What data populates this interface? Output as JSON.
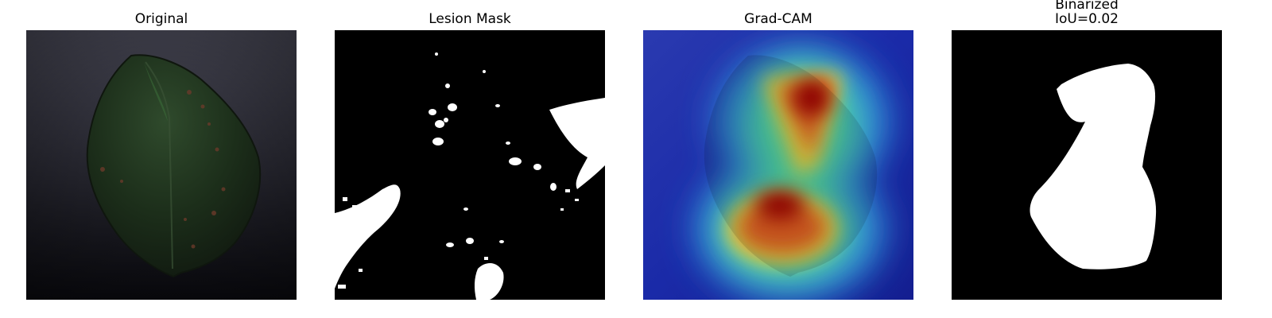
{
  "panels": [
    {
      "id": "original",
      "title": "Original"
    },
    {
      "id": "lesion-mask",
      "title": "Lesion Mask"
    },
    {
      "id": "grad-cam",
      "title": "Grad-CAM"
    },
    {
      "id": "binarized",
      "title": "Binarized",
      "subtitle": "IoU=0.02"
    }
  ],
  "colors": {
    "background": "#ffffff",
    "mask_background": "#000000",
    "mask_foreground": "#ffffff",
    "cam_low": "#1a1aa6",
    "cam_high": "#b00000"
  }
}
